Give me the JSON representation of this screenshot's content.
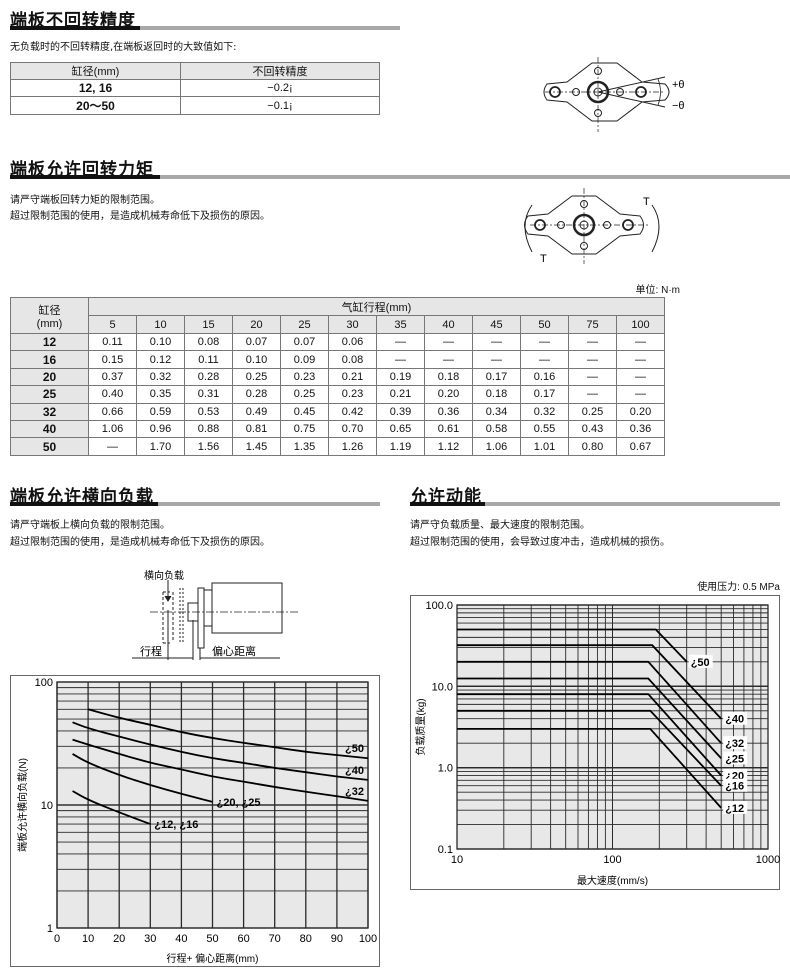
{
  "sec1": {
    "title": "端板不回转精度",
    "desc": "无负载时的不回转精度,在端板返回时的大致值如下:",
    "headers": [
      "缸径(mm)",
      "不回转精度"
    ],
    "rows": [
      [
        "12, 16",
        "−0.2¡"
      ],
      [
        "20～50",
        "−0.1¡"
      ]
    ],
    "fig_labels": [
      "+θ",
      "−θ"
    ]
  },
  "sec2": {
    "title": "端板允许回转力矩",
    "desc1": "请严守端板回转力矩的限制范围。",
    "desc2": "超过限制范围的使用，是造成机械寿命低下及损伤的原因。",
    "fig_labels": [
      "T",
      "T"
    ],
    "unit": "单位: N·m",
    "bore_header": "缸径\n(mm)",
    "bore_header_l1": "缸径",
    "bore_header_l2": "(mm)",
    "stroke_header": "气缸行程(mm)",
    "strokes": [
      "5",
      "10",
      "15",
      "20",
      "25",
      "30",
      "35",
      "40",
      "45",
      "50",
      "75",
      "100"
    ],
    "rows": [
      {
        "bore": "12",
        "v": [
          "0.11",
          "0.10",
          "0.08",
          "0.07",
          "0.07",
          "0.06",
          "—",
          "—",
          "—",
          "—",
          "—",
          "—"
        ]
      },
      {
        "bore": "16",
        "v": [
          "0.15",
          "0.12",
          "0.11",
          "0.10",
          "0.09",
          "0.08",
          "—",
          "—",
          "—",
          "—",
          "—",
          "—"
        ]
      },
      {
        "bore": "20",
        "v": [
          "0.37",
          "0.32",
          "0.28",
          "0.25",
          "0.23",
          "0.21",
          "0.19",
          "0.18",
          "0.17",
          "0.16",
          "—",
          "—"
        ]
      },
      {
        "bore": "25",
        "v": [
          "0.40",
          "0.35",
          "0.31",
          "0.28",
          "0.25",
          "0.23",
          "0.21",
          "0.20",
          "0.18",
          "0.17",
          "—",
          "—"
        ]
      },
      {
        "bore": "32",
        "v": [
          "0.66",
          "0.59",
          "0.53",
          "0.49",
          "0.45",
          "0.42",
          "0.39",
          "0.36",
          "0.34",
          "0.32",
          "0.25",
          "0.20"
        ]
      },
      {
        "bore": "40",
        "v": [
          "1.06",
          "0.96",
          "0.88",
          "0.81",
          "0.75",
          "0.70",
          "0.65",
          "0.61",
          "0.58",
          "0.55",
          "0.43",
          "0.36"
        ]
      },
      {
        "bore": "50",
        "v": [
          "—",
          "1.70",
          "1.56",
          "1.45",
          "1.35",
          "1.26",
          "1.19",
          "1.12",
          "1.06",
          "1.01",
          "0.80",
          "0.67"
        ]
      }
    ]
  },
  "sec3": {
    "title": "端板允许横向负载",
    "desc1": "请严守端板上横向负载的限制范围。",
    "desc2": "超过限制范围的使用，是造成机械寿命低下及损伤的原因。",
    "fig_labels": {
      "load": "横向负载",
      "stroke": "行程",
      "offset": "偏心距离"
    }
  },
  "sec4": {
    "title": "允许动能",
    "desc1": "请严守负载质量、最大速度的限制范围。",
    "desc2": "超过限制范围的使用，会导致过度冲击，造成机械的损伤。",
    "pressure": "使用压力: 0.5 MPa"
  },
  "colors": {
    "plot_bg": "#e8e8e8",
    "grid": "#2a2a2a",
    "curve": "#000000",
    "header_bg": "#e6e6e6"
  },
  "chart_data": [
    {
      "type": "line",
      "xlabel": "行程+ 偏心距离(mm)",
      "ylabel": "端板允许横向负载(N)",
      "xlim": [
        0,
        100
      ],
      "ylim": [
        1,
        100
      ],
      "yscale": "log",
      "grid": true,
      "xticks": [
        "0",
        "10",
        "20",
        "30",
        "40",
        "50",
        "60",
        "70",
        "80",
        "90",
        "100"
      ],
      "yticks": [
        "1",
        "10",
        "100"
      ],
      "series": [
        {
          "name": "¿50",
          "x": [
            10,
            20,
            30,
            40,
            50,
            60,
            70,
            80,
            90,
            100
          ],
          "y": [
            60,
            51,
            45,
            39,
            35,
            32,
            29.5,
            27,
            25.5,
            24
          ]
        },
        {
          "name": "¿40",
          "x": [
            5,
            10,
            20,
            30,
            40,
            50,
            60,
            70,
            80,
            90,
            100
          ],
          "y": [
            47,
            42,
            36,
            31,
            27,
            24,
            22,
            20,
            18.5,
            17,
            16
          ]
        },
        {
          "name": "¿32",
          "x": [
            5,
            10,
            20,
            30,
            40,
            50,
            60,
            70,
            80,
            90,
            100
          ],
          "y": [
            34,
            31,
            26,
            22,
            19.5,
            17,
            15.5,
            14,
            12.8,
            11.8,
            10.8
          ]
        },
        {
          "name": "¿20, ¿25",
          "x": [
            5,
            10,
            20,
            30,
            40,
            50
          ],
          "y": [
            26,
            22,
            17.5,
            14.5,
            12.3,
            10.6
          ]
        },
        {
          "name": "¿12, ¿16",
          "x": [
            5,
            10,
            20,
            30
          ],
          "y": [
            13,
            11,
            8.7,
            7
          ]
        }
      ]
    },
    {
      "type": "line",
      "xlabel": "最大速度(mm/s)",
      "ylabel": "负载质量(kg)",
      "xlim": [
        10,
        1000
      ],
      "ylim": [
        0.1,
        100
      ],
      "xscale": "log",
      "yscale": "log",
      "grid": true,
      "xticks": [
        "10",
        "100",
        "1000"
      ],
      "yticks": [
        "0.1",
        "1.0",
        "10.0",
        "100.0"
      ],
      "series": [
        {
          "name": "¿50",
          "x": [
            10,
            190,
            300
          ],
          "y": [
            50,
            50,
            20
          ]
        },
        {
          "name": "¿40",
          "x": [
            10,
            180,
            500
          ],
          "y": [
            32,
            32,
            4
          ]
        },
        {
          "name": "¿32",
          "x": [
            10,
            170,
            500
          ],
          "y": [
            20,
            20,
            2
          ]
        },
        {
          "name": "¿25",
          "x": [
            10,
            170,
            500
          ],
          "y": [
            12.5,
            12.5,
            1.3
          ]
        },
        {
          "name": "¿20",
          "x": [
            10,
            170,
            500
          ],
          "y": [
            8,
            8,
            0.8
          ]
        },
        {
          "name": "¿16",
          "x": [
            10,
            175,
            500
          ],
          "y": [
            5,
            5,
            0.6
          ]
        },
        {
          "name": "¿12",
          "x": [
            10,
            175,
            500
          ],
          "y": [
            3,
            3,
            0.32
          ]
        }
      ]
    }
  ]
}
